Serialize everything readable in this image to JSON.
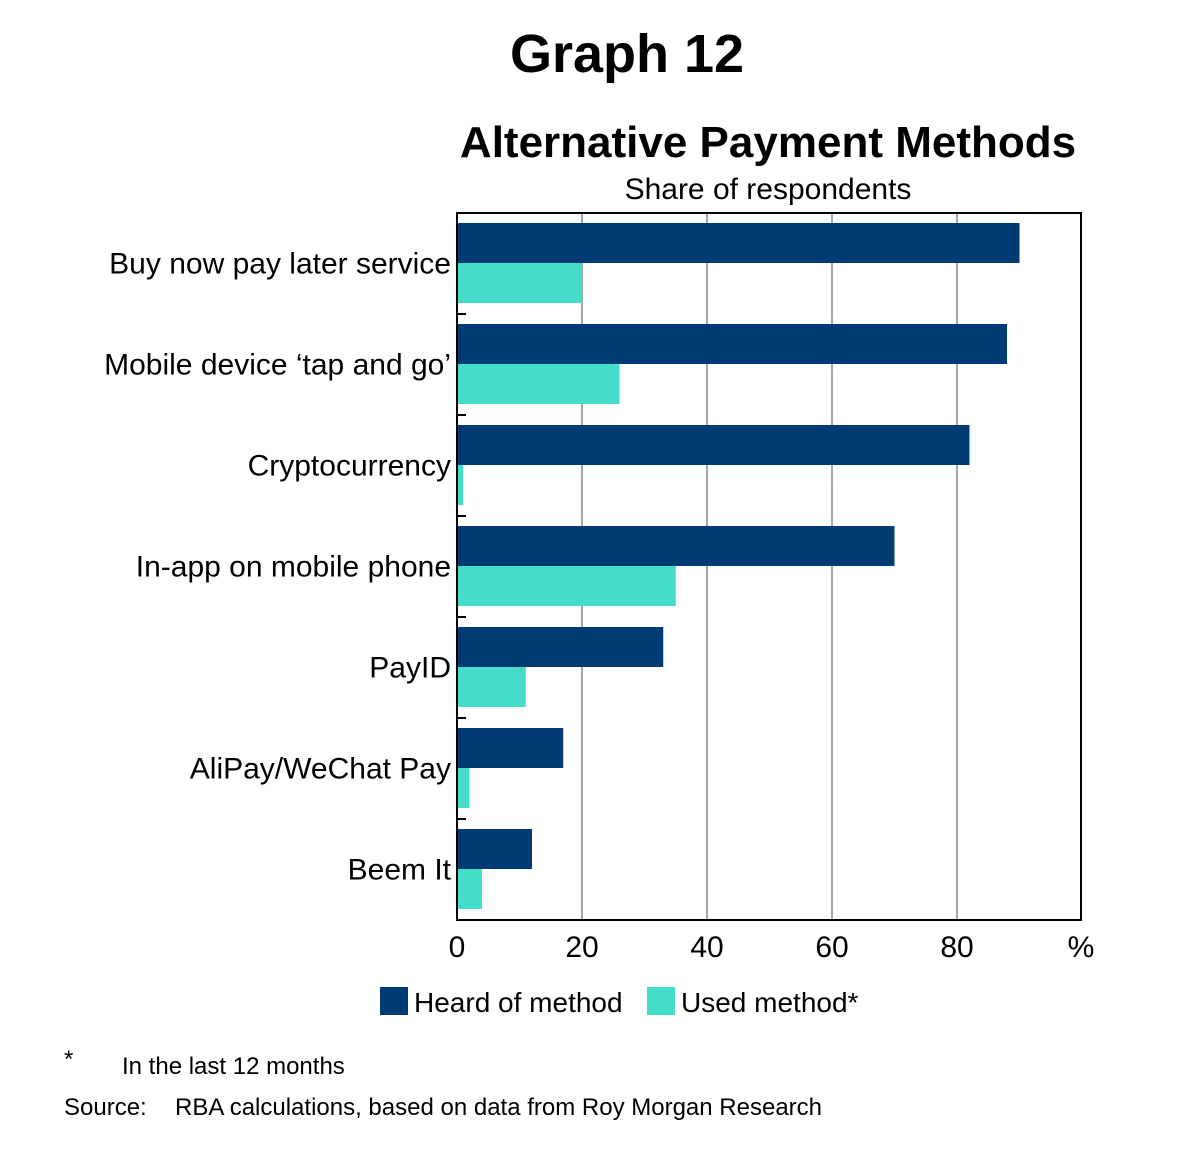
{
  "graph_label": "Graph 12",
  "footnotes": {
    "marker": "*",
    "note": "In the last 12 months",
    "source_label": "Source:",
    "source_text": "RBA calculations, based on data from Roy Morgan Research"
  },
  "colors": {
    "heard": "#003b73",
    "used": "#45dcc9",
    "grid": "#a6a6a6"
  },
  "chart_data": {
    "type": "bar",
    "orientation": "horizontal",
    "title": "Alternative Payment Methods",
    "subtitle": "Share of respondents",
    "unit": "%",
    "categories": [
      "Buy now pay later service",
      "Mobile device ‘tap and go’",
      "Cryptocurrency",
      "In-app on mobile phone",
      "PayID",
      "AliPay/WeChat Pay",
      "Beem It"
    ],
    "series": [
      {
        "name": "Heard of method",
        "values": [
          90,
          88,
          82,
          70,
          33,
          17,
          12
        ]
      },
      {
        "name": "Used method*",
        "values": [
          20,
          26,
          1,
          35,
          11,
          2,
          4
        ]
      }
    ],
    "xlim": [
      0,
      100
    ],
    "xticks": [
      0,
      20,
      40,
      60,
      80
    ],
    "grid": true,
    "legend_position": "bottom"
  }
}
